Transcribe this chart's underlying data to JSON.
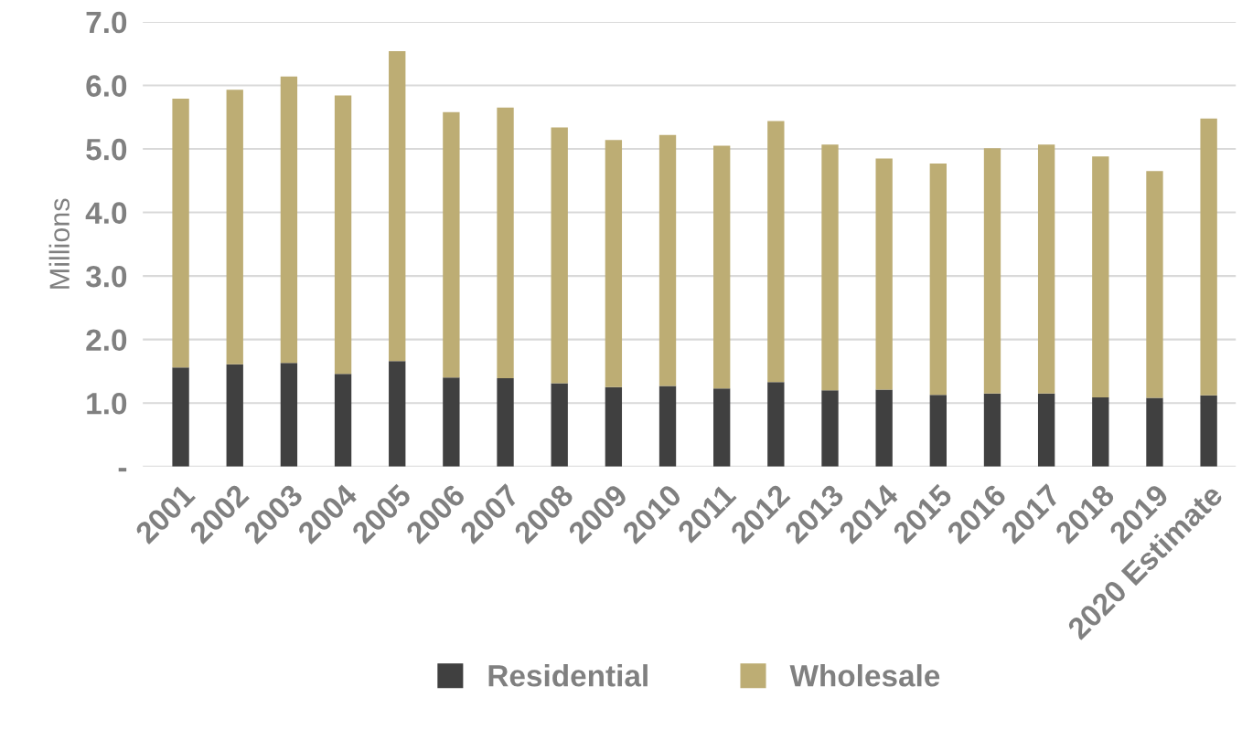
{
  "chart_data": {
    "type": "bar",
    "stacked": true,
    "ylabel": "Millions",
    "categories": [
      "2001",
      "2002",
      "2003",
      "2004",
      "2005",
      "2006",
      "2007",
      "2008",
      "2009",
      "2010",
      "2011",
      "2012",
      "2013",
      "2014",
      "2015",
      "2016",
      "2017",
      "2018",
      "2019",
      "2020 Estimate"
    ],
    "series": [
      {
        "name": "Residential",
        "color": "#404040",
        "values": [
          1.56,
          1.61,
          1.63,
          1.46,
          1.66,
          1.4,
          1.39,
          1.31,
          1.25,
          1.27,
          1.23,
          1.33,
          1.2,
          1.21,
          1.13,
          1.15,
          1.15,
          1.09,
          1.08,
          1.12
        ]
      },
      {
        "name": "Wholesale",
        "color": "#bdad74",
        "values": [
          4.23,
          4.32,
          4.51,
          4.38,
          4.88,
          4.18,
          4.26,
          4.03,
          3.89,
          3.95,
          3.82,
          4.11,
          3.87,
          3.64,
          3.64,
          3.86,
          3.92,
          3.79,
          3.57,
          4.36
        ]
      }
    ],
    "ylim": [
      0,
      7.0
    ],
    "yticks": [
      {
        "value": 0,
        "label": "-"
      },
      {
        "value": 1,
        "label": "1.0"
      },
      {
        "value": 2,
        "label": "2.0"
      },
      {
        "value": 3,
        "label": "3.0"
      },
      {
        "value": 4,
        "label": "4.0"
      },
      {
        "value": 5,
        "label": "5.0"
      },
      {
        "value": 6,
        "label": "6.0"
      },
      {
        "value": 7,
        "label": "7.0"
      }
    ],
    "grid": "y",
    "legend": "bottom"
  }
}
